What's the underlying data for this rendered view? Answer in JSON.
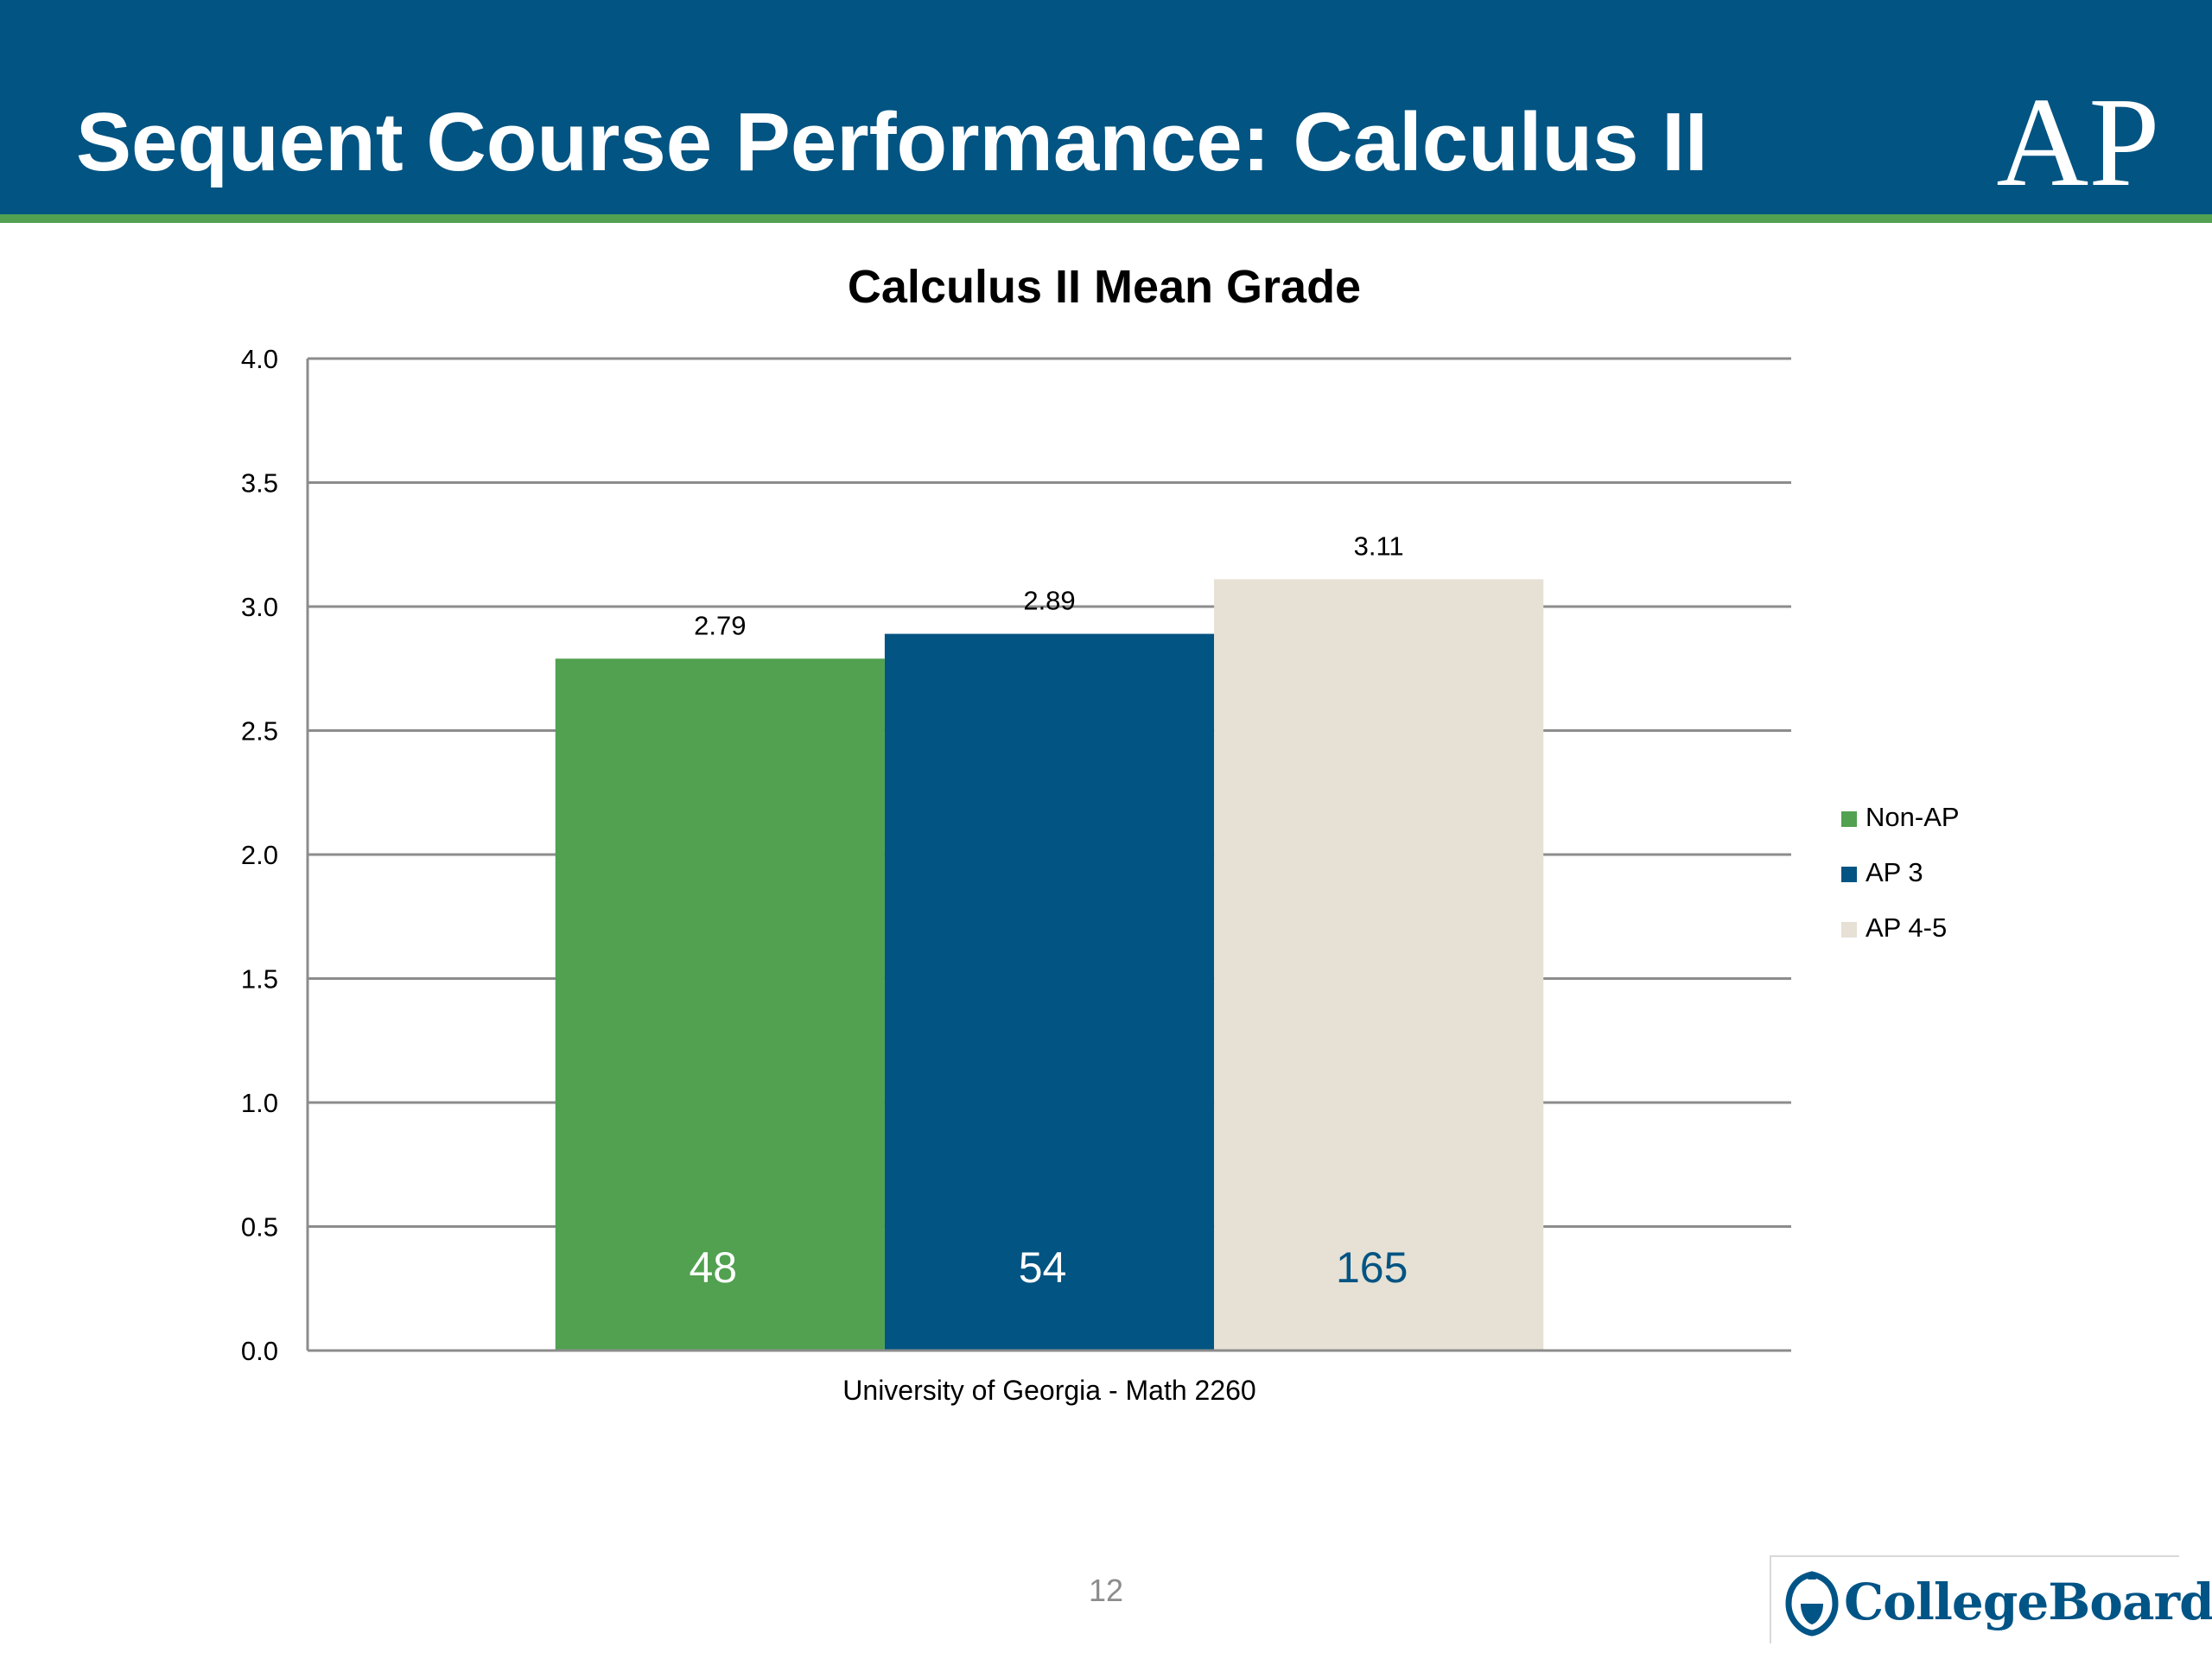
{
  "slide": {
    "title": "Sequent Course Performance: Calculus II",
    "page_number": "12",
    "logos": {
      "ap": "AP",
      "college_board": "CollegeBoard"
    }
  },
  "colors": {
    "header_background": "#025482",
    "header_rule": "#51a150",
    "non_ap": "#51a150",
    "ap3": "#025482",
    "ap45": "#e6e0d5"
  },
  "chart_data": {
    "type": "bar",
    "title": "Calculus II Mean Grade",
    "xlabel": "",
    "ylabel": "",
    "categories": [
      "University of Georgia - Math 2260"
    ],
    "ylim": [
      0,
      4
    ],
    "yticks": [
      "0.0",
      "0.5",
      "1.0",
      "1.5",
      "2.0",
      "2.5",
      "3.0",
      "3.5",
      "4.0"
    ],
    "grid": true,
    "legend_position": "right",
    "series": [
      {
        "name": "Non-AP",
        "values": [
          2.79
        ],
        "value_labels": [
          "2.79"
        ],
        "inner_labels": [
          "48"
        ],
        "color": "#51a150",
        "inner_label_color": "#ffffff"
      },
      {
        "name": "AP 3",
        "values": [
          2.89
        ],
        "value_labels": [
          "2.89"
        ],
        "inner_labels": [
          "54"
        ],
        "color": "#025482",
        "inner_label_color": "#ffffff"
      },
      {
        "name": "AP 4-5",
        "values": [
          3.11
        ],
        "value_labels": [
          "3.11"
        ],
        "inner_labels": [
          "165"
        ],
        "color": "#e6e0d5",
        "inner_label_color": "#025482"
      }
    ]
  }
}
